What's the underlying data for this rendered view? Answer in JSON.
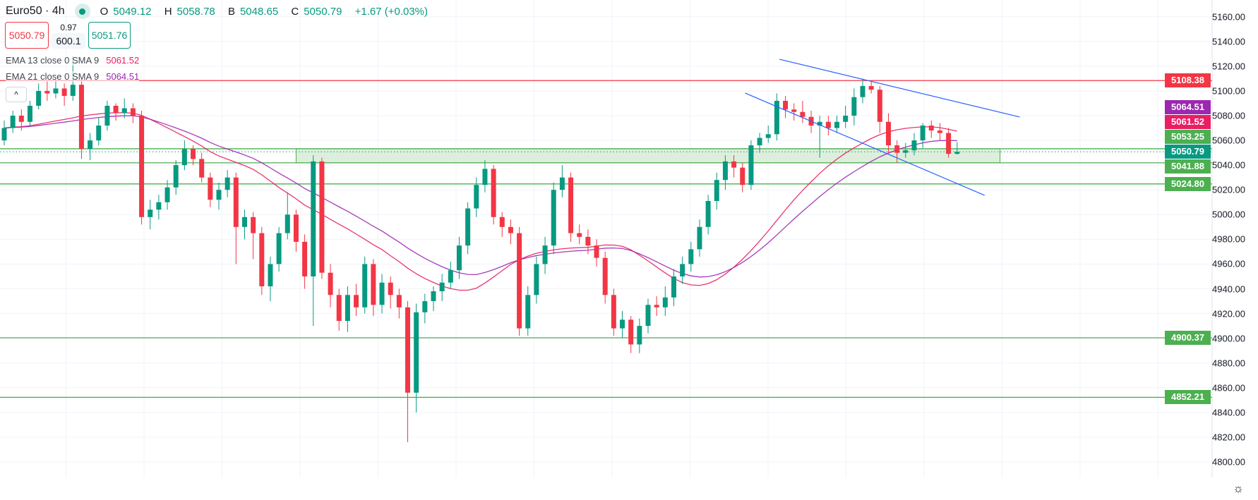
{
  "header": {
    "symbol": "Euro50 · 4h",
    "status_icon": "market-open-dot",
    "ohlc": [
      {
        "key": "O",
        "value": "5049.12"
      },
      {
        "key": "H",
        "value": "5058.78"
      },
      {
        "key": "B",
        "value": "5048.65"
      },
      {
        "key": "C",
        "value": "5050.79"
      }
    ],
    "change": "+1.67 (+0.03%)"
  },
  "trade": {
    "sell_price": "5050.79",
    "spread": "0.97",
    "quantity": "600.1",
    "buy_price": "5051.76"
  },
  "indicators": [
    {
      "label": "EMA 13 close 0 SMA 9",
      "value": "5061.52",
      "color": "#E91E63",
      "period": 13
    },
    {
      "label": "EMA 21 close 0 SMA 9",
      "value": "5064.51",
      "color": "#9C27B0",
      "period": 21
    }
  ],
  "colors": {
    "up": "#089981",
    "down": "#F23645",
    "level": "#4CAF50",
    "resistance": "#F23645",
    "trendline": "#2962FF",
    "zone_fill": "#DDEFDC"
  },
  "chart_data": {
    "type": "candlestick",
    "symbol": "Euro50",
    "timeframe": "4h",
    "ylim": [
      4790,
      5170
    ],
    "y_ticks": [
      "5160.00",
      "5140.00",
      "5120.00",
      "5100.00",
      "5080.00",
      "5060.00",
      "5040.00",
      "5020.00",
      "5000.00",
      "4980.00",
      "4960.00",
      "4940.00",
      "4920.00",
      "4900.00",
      "4880.00",
      "4860.00",
      "4840.00",
      "4820.00",
      "4800.00"
    ],
    "grid": true,
    "candles": [
      [
        5060,
        5076,
        5056,
        5070
      ],
      [
        5070,
        5084,
        5066,
        5080
      ],
      [
        5080,
        5085,
        5068,
        5075
      ],
      [
        5075,
        5092,
        5072,
        5088
      ],
      [
        5088,
        5106,
        5085,
        5100
      ],
      [
        5100,
        5108,
        5092,
        5098
      ],
      [
        5098,
        5110,
        5094,
        5102
      ],
      [
        5102,
        5106,
        5088,
        5096
      ],
      [
        5096,
        5128,
        5092,
        5105
      ],
      [
        5105,
        5110,
        5045,
        5053
      ],
      [
        5053,
        5066,
        5044,
        5060
      ],
      [
        5060,
        5078,
        5056,
        5072
      ],
      [
        5072,
        5092,
        5068,
        5088
      ],
      [
        5088,
        5090,
        5076,
        5082
      ],
      [
        5082,
        5094,
        5078,
        5086
      ],
      [
        5086,
        5090,
        5074,
        5080
      ],
      [
        5080,
        5084,
        4992,
        4998
      ],
      [
        4998,
        5012,
        4988,
        5004
      ],
      [
        5004,
        5016,
        4996,
        5010
      ],
      [
        5010,
        5028,
        5004,
        5022
      ],
      [
        5022,
        5044,
        5016,
        5040
      ],
      [
        5040,
        5060,
        5036,
        5053
      ],
      [
        5053,
        5056,
        5040,
        5045
      ],
      [
        5045,
        5050,
        5026,
        5030
      ],
      [
        5030,
        5034,
        5006,
        5012
      ],
      [
        5012,
        5026,
        5004,
        5020
      ],
      [
        5020,
        5036,
        5014,
        5030
      ],
      [
        5030,
        5034,
        4960,
        4990
      ],
      [
        4990,
        5004,
        4980,
        4998
      ],
      [
        4998,
        5002,
        4964,
        4985
      ],
      [
        4985,
        4990,
        4935,
        4942
      ],
      [
        4942,
        4966,
        4930,
        4960
      ],
      [
        4960,
        4990,
        4954,
        4985
      ],
      [
        4985,
        5018,
        4980,
        5000
      ],
      [
        5000,
        5004,
        4970,
        4978
      ],
      [
        4978,
        4984,
        4940,
        4950
      ],
      [
        4950,
        5048,
        4910,
        5043
      ],
      [
        5043,
        5046,
        4948,
        4953
      ],
      [
        4953,
        4960,
        4925,
        4935
      ],
      [
        4935,
        4940,
        4906,
        4914
      ],
      [
        4914,
        4942,
        4905,
        4935
      ],
      [
        4935,
        4944,
        4918,
        4925
      ],
      [
        4925,
        4966,
        4920,
        4960
      ],
      [
        4960,
        4964,
        4918,
        4927
      ],
      [
        4927,
        4952,
        4920,
        4945
      ],
      [
        4945,
        4950,
        4924,
        4935
      ],
      [
        4935,
        4940,
        4916,
        4925
      ],
      [
        4925,
        4930,
        4816,
        4856
      ],
      [
        4856,
        4928,
        4840,
        4921
      ],
      [
        4921,
        4936,
        4912,
        4930
      ],
      [
        4930,
        4942,
        4922,
        4938
      ],
      [
        4938,
        4952,
        4930,
        4945
      ],
      [
        4945,
        4962,
        4940,
        4955
      ],
      [
        4955,
        4982,
        4948,
        4975
      ],
      [
        4975,
        5010,
        4968,
        5005
      ],
      [
        5005,
        5030,
        4998,
        5024
      ],
      [
        5024,
        5044,
        5018,
        5037
      ],
      [
        5037,
        5040,
        4992,
        4998
      ],
      [
        4998,
        5002,
        4982,
        4990
      ],
      [
        4990,
        4996,
        4976,
        4985
      ],
      [
        4985,
        4990,
        4902,
        4908
      ],
      [
        4908,
        4942,
        4902,
        4935
      ],
      [
        4935,
        4966,
        4928,
        4960
      ],
      [
        4960,
        4982,
        4952,
        4975
      ],
      [
        4975,
        5026,
        4968,
        5020
      ],
      [
        5020,
        5040,
        5014,
        5030
      ],
      [
        5030,
        5034,
        4978,
        4985
      ],
      [
        4985,
        4992,
        4976,
        4982
      ],
      [
        4982,
        4988,
        4968,
        4975
      ],
      [
        4975,
        4980,
        4958,
        4965
      ],
      [
        4965,
        4970,
        4928,
        4935
      ],
      [
        4935,
        4940,
        4902,
        4908
      ],
      [
        4908,
        4922,
        4900,
        4915
      ],
      [
        4915,
        4918,
        4888,
        4895
      ],
      [
        4895,
        4916,
        4888,
        4910
      ],
      [
        4910,
        4932,
        4904,
        4927
      ],
      [
        4927,
        4934,
        4918,
        4925
      ],
      [
        4925,
        4942,
        4918,
        4933
      ],
      [
        4933,
        4956,
        4926,
        4950
      ],
      [
        4950,
        4966,
        4944,
        4960
      ],
      [
        4960,
        4978,
        4954,
        4972
      ],
      [
        4972,
        4996,
        4966,
        4990
      ],
      [
        4990,
        5016,
        4984,
        5011
      ],
      [
        5011,
        5034,
        5004,
        5028
      ],
      [
        5028,
        5048,
        5020,
        5043
      ],
      [
        5043,
        5048,
        5030,
        5038
      ],
      [
        5038,
        5042,
        5018,
        5024
      ],
      [
        5024,
        5060,
        5020,
        5056
      ],
      [
        5056,
        5066,
        5050,
        5062
      ],
      [
        5062,
        5072,
        5058,
        5065
      ],
      [
        5065,
        5098,
        5060,
        5092
      ],
      [
        5092,
        5096,
        5078,
        5085
      ],
      [
        5085,
        5090,
        5076,
        5083
      ],
      [
        5083,
        5092,
        5074,
        5079
      ],
      [
        5079,
        5084,
        5066,
        5072
      ],
      [
        5072,
        5080,
        5046,
        5075
      ],
      [
        5075,
        5080,
        5064,
        5070
      ],
      [
        5070,
        5080,
        5066,
        5075
      ],
      [
        5075,
        5088,
        5070,
        5080
      ],
      [
        5080,
        5102,
        5072,
        5095
      ],
      [
        5095,
        5110,
        5090,
        5104
      ],
      [
        5104,
        5108,
        5098,
        5101
      ],
      [
        5101,
        5104,
        5066,
        5075
      ],
      [
        5075,
        5082,
        5050,
        5056
      ],
      [
        5056,
        5060,
        5042,
        5050
      ],
      [
        5050,
        5058,
        5046,
        5052
      ],
      [
        5052,
        5066,
        5048,
        5060
      ],
      [
        5060,
        5074,
        5054,
        5072
      ],
      [
        5072,
        5076,
        5062,
        5068
      ],
      [
        5068,
        5074,
        5060,
        5066
      ],
      [
        5066,
        5070,
        5046,
        5049.12
      ],
      [
        5049.12,
        5058.78,
        5048.65,
        5050.79
      ]
    ],
    "current_price": "5050.79",
    "horizontal_levels": [
      {
        "price": "5108.38",
        "kind": "resistance"
      },
      {
        "price": "5053.25",
        "kind": "support"
      },
      {
        "price": "5041.88",
        "kind": "support"
      },
      {
        "price": "5024.80",
        "kind": "support"
      },
      {
        "price": "4900.37",
        "kind": "support"
      },
      {
        "price": "4852.21",
        "kind": "support"
      }
    ],
    "zone": {
      "top": 5053.25,
      "bottom": 5041.88,
      "from_candle": 34,
      "to_candle": 116
    },
    "trendlines": [
      {
        "from": [
          90.3,
          5125.6
        ],
        "to": [
          118.3,
          5078.9
        ]
      },
      {
        "from": [
          86.3,
          5098.3
        ],
        "to": [
          114.2,
          5015.6
        ]
      }
    ],
    "price_badges": [
      {
        "value": "5108.38",
        "color": "#F23645"
      },
      {
        "value": "5064.51",
        "color": "#9C27B0"
      },
      {
        "value": "5061.52",
        "color": "#E91E63"
      },
      {
        "value": "5053.25",
        "color": "#4CAF50"
      },
      {
        "value": "5050.79",
        "color": "#089981"
      },
      {
        "value": "5041.88",
        "color": "#4CAF50"
      },
      {
        "value": "5024.80",
        "color": "#4CAF50"
      },
      {
        "value": "4900.37",
        "color": "#4CAF50"
      },
      {
        "value": "4852.21",
        "color": "#4CAF50"
      }
    ]
  },
  "footer": {
    "settings_icon": "gear-icon"
  }
}
